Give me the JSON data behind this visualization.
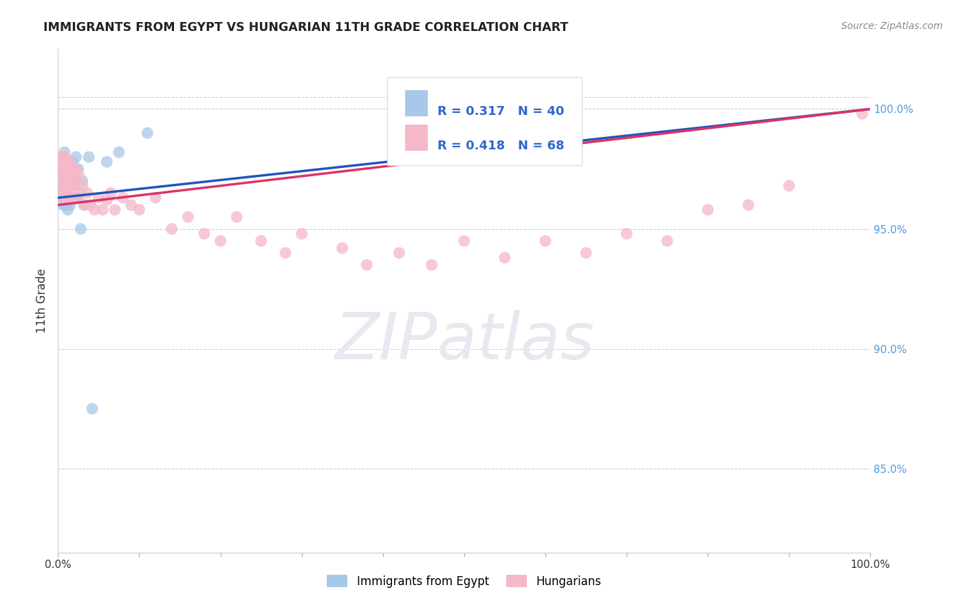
{
  "title": "IMMIGRANTS FROM EGYPT VS HUNGARIAN 11TH GRADE CORRELATION CHART",
  "ylabel": "11th Grade",
  "source_text": "Source: ZipAtlas.com",
  "x_min": 0.0,
  "x_max": 1.0,
  "x_label_min": "0.0%",
  "x_label_max": "100.0%",
  "y_tick_labels": [
    "100.0%",
    "95.0%",
    "90.0%",
    "85.0%"
  ],
  "y_tick_values": [
    1.0,
    0.95,
    0.9,
    0.85
  ],
  "y_min": 0.815,
  "y_max": 1.025,
  "blue_color": "#a8c8e8",
  "pink_color": "#f5b8c8",
  "blue_line_color": "#2255bb",
  "pink_line_color": "#dd3366",
  "R_blue": 0.317,
  "N_blue": 40,
  "R_pink": 0.418,
  "N_pink": 68,
  "legend_blue_label": "Immigrants from Egypt",
  "legend_pink_label": "Hungarians",
  "watermark_text": "ZIPatlas",
  "blue_x": [
    0.003,
    0.004,
    0.005,
    0.005,
    0.006,
    0.006,
    0.007,
    0.007,
    0.008,
    0.008,
    0.009,
    0.009,
    0.01,
    0.01,
    0.011,
    0.011,
    0.012,
    0.012,
    0.013,
    0.013,
    0.014,
    0.015,
    0.015,
    0.016,
    0.017,
    0.018,
    0.019,
    0.02,
    0.021,
    0.022,
    0.023,
    0.025,
    0.028,
    0.03,
    0.032,
    0.038,
    0.042,
    0.06,
    0.075,
    0.11
  ],
  "blue_y": [
    0.973,
    0.968,
    0.98,
    0.965,
    0.978,
    0.96,
    0.975,
    0.963,
    0.982,
    0.97,
    0.975,
    0.96,
    0.978,
    0.965,
    0.975,
    0.96,
    0.972,
    0.958,
    0.975,
    0.963,
    0.97,
    0.978,
    0.96,
    0.975,
    0.963,
    0.978,
    0.968,
    0.975,
    0.972,
    0.98,
    0.963,
    0.975,
    0.95,
    0.97,
    0.96,
    0.98,
    0.875,
    0.978,
    0.982,
    0.99
  ],
  "pink_x": [
    0.003,
    0.004,
    0.005,
    0.005,
    0.006,
    0.006,
    0.007,
    0.007,
    0.008,
    0.008,
    0.009,
    0.009,
    0.01,
    0.01,
    0.011,
    0.011,
    0.012,
    0.012,
    0.013,
    0.013,
    0.014,
    0.015,
    0.016,
    0.017,
    0.018,
    0.019,
    0.02,
    0.021,
    0.022,
    0.024,
    0.026,
    0.028,
    0.03,
    0.033,
    0.036,
    0.04,
    0.045,
    0.05,
    0.055,
    0.06,
    0.065,
    0.07,
    0.08,
    0.09,
    0.1,
    0.12,
    0.14,
    0.16,
    0.18,
    0.2,
    0.22,
    0.25,
    0.28,
    0.3,
    0.35,
    0.38,
    0.42,
    0.46,
    0.5,
    0.55,
    0.6,
    0.65,
    0.7,
    0.75,
    0.8,
    0.85,
    0.9,
    0.99
  ],
  "pink_y": [
    0.975,
    0.978,
    0.98,
    0.97,
    0.975,
    0.965,
    0.978,
    0.968,
    0.98,
    0.972,
    0.975,
    0.963,
    0.978,
    0.968,
    0.975,
    0.963,
    0.972,
    0.965,
    0.978,
    0.968,
    0.975,
    0.978,
    0.972,
    0.968,
    0.975,
    0.963,
    0.972,
    0.968,
    0.975,
    0.963,
    0.972,
    0.965,
    0.968,
    0.96,
    0.965,
    0.96,
    0.958,
    0.963,
    0.958,
    0.962,
    0.965,
    0.958,
    0.963,
    0.96,
    0.958,
    0.963,
    0.95,
    0.955,
    0.948,
    0.945,
    0.955,
    0.945,
    0.94,
    0.948,
    0.942,
    0.935,
    0.94,
    0.935,
    0.945,
    0.938,
    0.945,
    0.94,
    0.948,
    0.945,
    0.958,
    0.96,
    0.968,
    0.998
  ],
  "blue_trend_x0": 0.0,
  "blue_trend_y0": 0.963,
  "blue_trend_x1": 1.0,
  "blue_trend_y1": 1.0,
  "pink_trend_x0": 0.0,
  "pink_trend_y0": 0.96,
  "pink_trend_x1": 1.0,
  "pink_trend_y1": 1.0
}
